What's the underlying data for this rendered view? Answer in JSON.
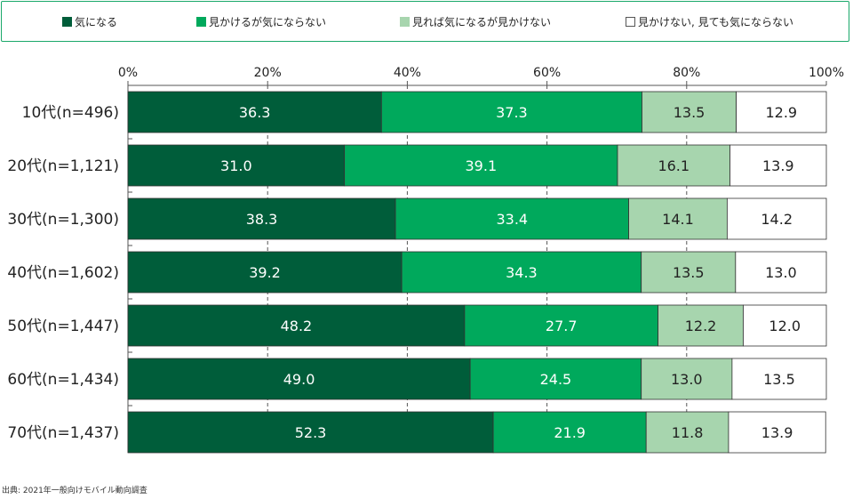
{
  "chart_data": {
    "type": "bar",
    "orientation": "horizontal",
    "stacked": true,
    "percent": true,
    "categories": [
      "10代(n=496)",
      "20代(n=1,121)",
      "30代(n=1,300)",
      "40代(n=1,602)",
      "50代(n=1,447)",
      "60代(n=1,434)",
      "70代(n=1,437)"
    ],
    "series": [
      {
        "name": "気になる",
        "color": "#005d3a",
        "label_color": "#ffffff",
        "values": [
          36.3,
          31.0,
          38.3,
          39.2,
          48.2,
          49.0,
          52.3
        ]
      },
      {
        "name": "見かけるが気にならない",
        "color": "#00a95c",
        "label_color": "#ffffff",
        "values": [
          37.3,
          39.1,
          33.4,
          34.3,
          27.7,
          24.5,
          21.9
        ]
      },
      {
        "name": "見れば気になるが見かけない",
        "color": "#a7d5ae",
        "label_color": "#222222",
        "values": [
          13.5,
          16.1,
          14.1,
          13.5,
          12.2,
          13.0,
          11.8
        ]
      },
      {
        "name": "見かけない, 見ても気にならない",
        "color": "#ffffff",
        "label_color": "#222222",
        "values": [
          12.9,
          13.9,
          14.2,
          13.0,
          12.0,
          13.5,
          13.9
        ]
      }
    ],
    "xlim": [
      0,
      100
    ],
    "xticks": [
      "0%",
      "20%",
      "40%",
      "60%",
      "80%",
      "100%"
    ],
    "grid": true,
    "legend_position": "top"
  },
  "source": "出典: 2021年一般向けモバイル動向調査"
}
